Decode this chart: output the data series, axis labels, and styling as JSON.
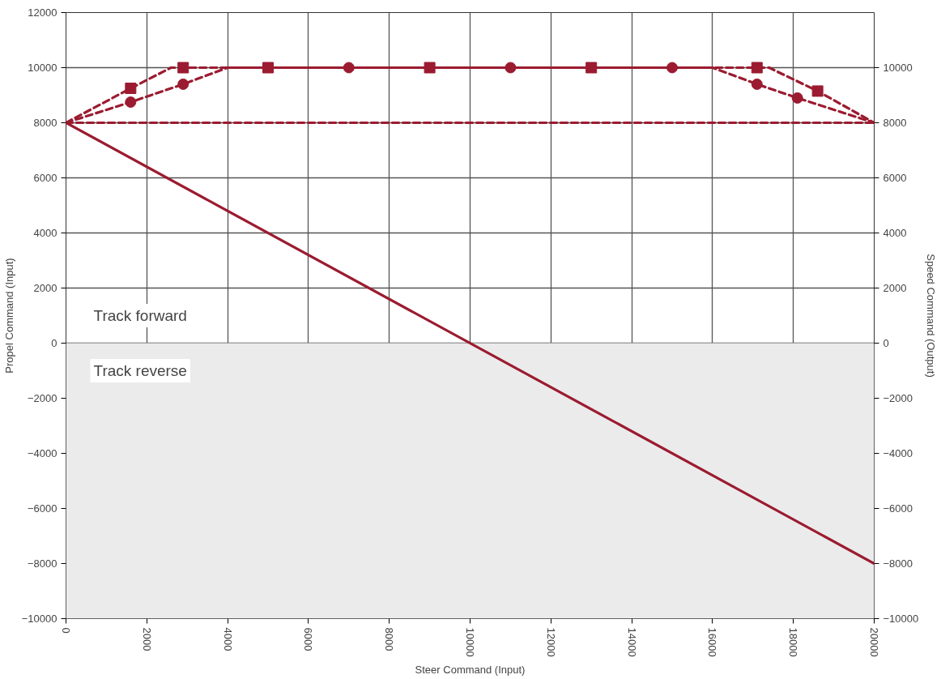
{
  "chart_data": {
    "type": "line",
    "xlabel": "Steer Command (Input)",
    "ylabel": "Propel Command (Input)",
    "y2label": "Speed Command (Output)",
    "xlim": [
      0,
      20000
    ],
    "xticks": [
      0,
      2000,
      4000,
      6000,
      8000,
      10000,
      12000,
      14000,
      16000,
      18000,
      20000
    ],
    "ylim": [
      -10000,
      12000
    ],
    "yticks": [
      -10000,
      -8000,
      -6000,
      -4000,
      -2000,
      0,
      2000,
      4000,
      6000,
      8000,
      10000,
      12000
    ],
    "y2lim": [
      -10000,
      12000
    ],
    "y2ticks": [
      -10000,
      -8000,
      -6000,
      -4000,
      -2000,
      0,
      2000,
      4000,
      6000,
      8000,
      10000
    ],
    "grid": true,
    "line_style": "dashed",
    "series": [
      {
        "color": "#9b1b30",
        "line_style": "solid",
        "x": [
          0,
          20000
        ],
        "values": [
          8000,
          -8000
        ]
      },
      {
        "color": "#9b1b30",
        "x": [
          0,
          20000
        ],
        "values": [
          8000,
          8000
        ]
      },
      {
        "type": "line",
        "color": "#9b1b30",
        "x": [
          0,
          1600,
          2600,
          17400,
          18600,
          20000
        ],
        "values": [
          8000,
          9250,
          10000,
          10000,
          9150,
          8000
        ]
      },
      {
        "type": "scatter",
        "color": "#9b1b30",
        "marker": "square",
        "x": [
          1600,
          2900,
          5000,
          9000,
          13000,
          17100,
          18600
        ],
        "values": [
          9250,
          10000,
          10000,
          10000,
          10000,
          10000,
          9150
        ]
      },
      {
        "type": "line",
        "color": "#9b1b30",
        "x": [
          0,
          1600,
          2900,
          4000,
          16000,
          17100,
          18100,
          20000
        ],
        "values": [
          8000,
          8750,
          9400,
          10000,
          10000,
          9400,
          8900,
          8000
        ]
      },
      {
        "type": "scatter",
        "color": "#9b1b30",
        "marker": "circle",
        "x": [
          1600,
          2900,
          7000,
          11000,
          15000,
          17100,
          18100
        ],
        "values": [
          8750,
          9400,
          10000,
          10000,
          10000,
          9400,
          8900
        ]
      }
    ],
    "bands": [
      {
        "axis": "y",
        "from": -10000,
        "to": 0,
        "color": "#ebebeb"
      }
    ],
    "annotations": [
      "Track forward",
      "Track reverse"
    ]
  }
}
